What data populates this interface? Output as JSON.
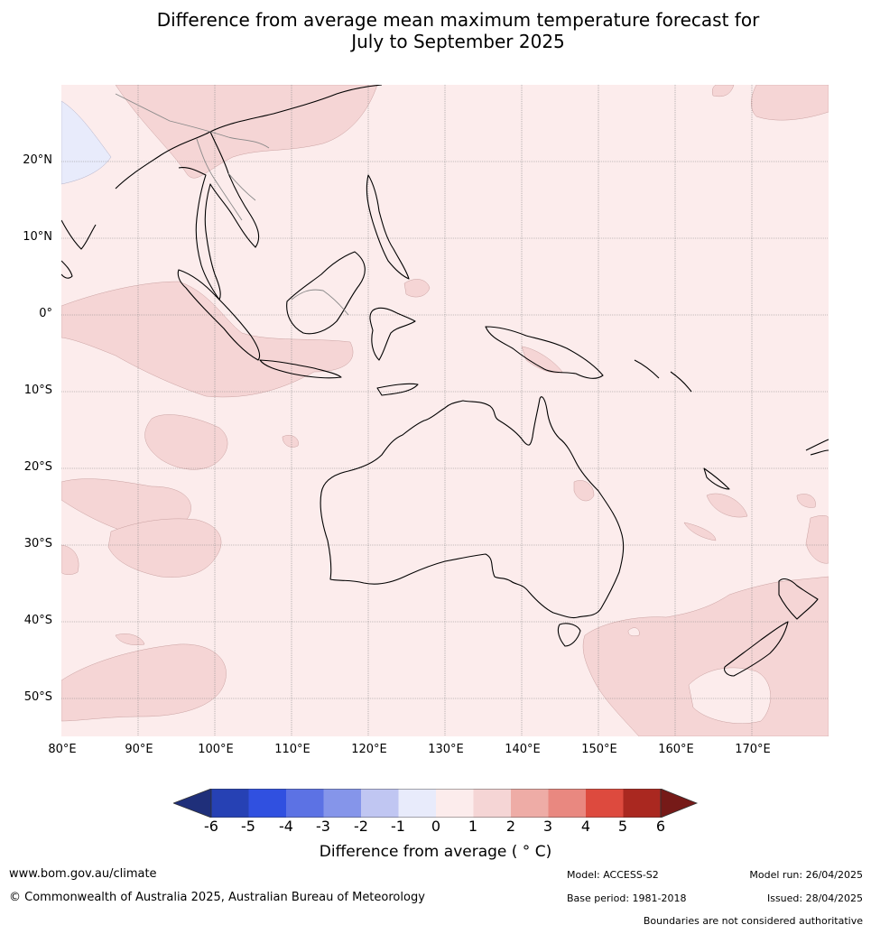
{
  "title": {
    "line1": "Difference from average mean maximum temperature forecast for",
    "line2": "July to September 2025"
  },
  "map": {
    "lat_labels": [
      "20°N",
      "10°N",
      "0°",
      "10°S",
      "20°S",
      "30°S",
      "40°S",
      "50°S"
    ],
    "lon_labels": [
      "80°E",
      "90°E",
      "100°E",
      "110°E",
      "120°E",
      "130°E",
      "140°E",
      "150°E",
      "160°E",
      "170°E"
    ],
    "extent": {
      "lon": [
        80,
        180
      ],
      "lat": [
        -55,
        30
      ]
    }
  },
  "colorbar": {
    "ticks": [
      "-6",
      "-5",
      "-4",
      "-3",
      "-2",
      "-1",
      "0",
      "1",
      "2",
      "3",
      "4",
      "5",
      "6"
    ],
    "colors": [
      "#1f2f7a",
      "#2641b4",
      "#3050e0",
      "#5c72e4",
      "#8595ea",
      "#c0c6f2",
      "#e8ebfb",
      "#fcecec",
      "#f5d5d5",
      "#eeaca6",
      "#e98880",
      "#dd4a3e",
      "#aa2820",
      "#761a18"
    ],
    "label": "Difference from average ( ° C)"
  },
  "footer": {
    "website": "www.bom.gov.au/climate",
    "copyright": "© Commonwealth of Australia 2025, Australian Bureau of Meteorology",
    "model": "Model: ACCESS-S2",
    "base_period": "Base period: 1981-2018",
    "model_run": "Model run: 26/04/2025",
    "issued": "Issued: 28/04/2025",
    "boundaries": "Boundaries are not considered authoritative"
  }
}
